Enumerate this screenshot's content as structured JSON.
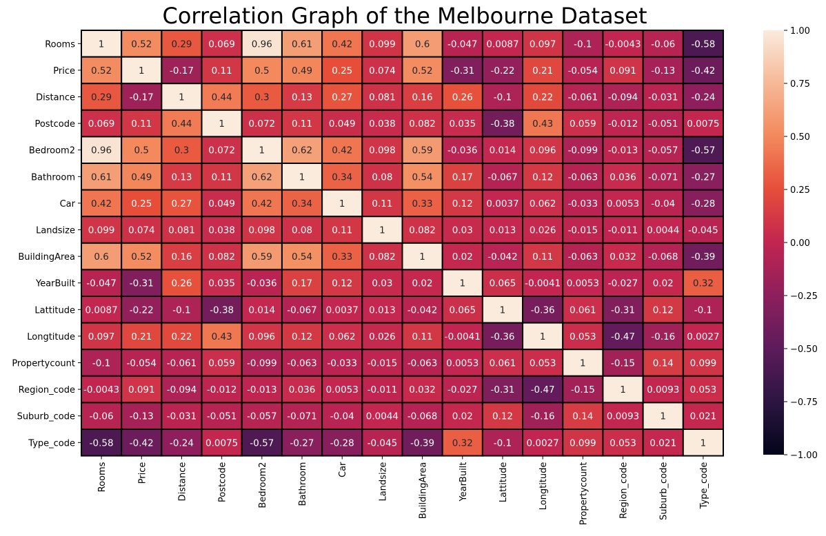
{
  "chart_data": {
    "type": "heatmap",
    "title": "Correlation Graph of the Melbourne Dataset",
    "labels": [
      "Rooms",
      "Price",
      "Distance",
      "Postcode",
      "Bedroom2",
      "Bathroom",
      "Car",
      "Landsize",
      "BuildingArea",
      "YearBuilt",
      "Lattitude",
      "Longtitude",
      "Propertycount",
      "Region_code",
      "Suburb_code",
      "Type_code"
    ],
    "values": [
      [
        1,
        0.52,
        0.29,
        0.069,
        0.96,
        0.61,
        0.42,
        0.099,
        0.6,
        -0.047,
        0.0087,
        0.097,
        -0.1,
        -0.0043,
        -0.06,
        -0.58
      ],
      [
        0.52,
        1,
        -0.17,
        0.11,
        0.5,
        0.49,
        0.25,
        0.074,
        0.52,
        -0.31,
        -0.22,
        0.21,
        -0.054,
        0.091,
        -0.13,
        -0.42
      ],
      [
        0.29,
        -0.17,
        1,
        0.44,
        0.3,
        0.13,
        0.27,
        0.081,
        0.16,
        0.26,
        -0.1,
        0.22,
        -0.061,
        -0.094,
        -0.031,
        -0.24
      ],
      [
        0.069,
        0.11,
        0.44,
        1,
        0.072,
        0.11,
        0.049,
        0.038,
        0.082,
        0.035,
        -0.38,
        0.43,
        0.059,
        -0.012,
        -0.051,
        0.0075
      ],
      [
        0.96,
        0.5,
        0.3,
        0.072,
        1,
        0.62,
        0.42,
        0.098,
        0.59,
        -0.036,
        0.014,
        0.096,
        -0.099,
        -0.013,
        -0.057,
        -0.57
      ],
      [
        0.61,
        0.49,
        0.13,
        0.11,
        0.62,
        1,
        0.34,
        0.08,
        0.54,
        0.17,
        -0.067,
        0.12,
        -0.063,
        0.036,
        -0.071,
        -0.27
      ],
      [
        0.42,
        0.25,
        0.27,
        0.049,
        0.42,
        0.34,
        1,
        0.11,
        0.33,
        0.12,
        0.0037,
        0.062,
        -0.033,
        0.0053,
        -0.04,
        -0.28
      ],
      [
        0.099,
        0.074,
        0.081,
        0.038,
        0.098,
        0.08,
        0.11,
        1,
        0.082,
        0.03,
        0.013,
        0.026,
        -0.015,
        -0.011,
        0.0044,
        -0.045
      ],
      [
        0.6,
        0.52,
        0.16,
        0.082,
        0.59,
        0.54,
        0.33,
        0.082,
        1,
        0.02,
        -0.042,
        0.11,
        -0.063,
        0.032,
        -0.068,
        -0.39
      ],
      [
        -0.047,
        -0.31,
        0.26,
        0.035,
        -0.036,
        0.17,
        0.12,
        0.03,
        0.02,
        1,
        0.065,
        -0.0041,
        0.0053,
        -0.027,
        0.02,
        0.32
      ],
      [
        0.0087,
        -0.22,
        -0.1,
        -0.38,
        0.014,
        -0.067,
        0.0037,
        0.013,
        -0.042,
        0.065,
        1,
        -0.36,
        0.061,
        -0.31,
        0.12,
        -0.1
      ],
      [
        0.097,
        0.21,
        0.22,
        0.43,
        0.096,
        0.12,
        0.062,
        0.026,
        0.11,
        -0.0041,
        -0.36,
        1,
        0.053,
        -0.47,
        -0.16,
        0.0027
      ],
      [
        -0.1,
        -0.054,
        -0.061,
        0.059,
        -0.099,
        -0.063,
        -0.033,
        -0.015,
        -0.063,
        0.0053,
        0.061,
        0.053,
        1,
        -0.15,
        0.14,
        0.099
      ],
      [
        -0.0043,
        0.091,
        -0.094,
        -0.012,
        -0.013,
        0.036,
        0.0053,
        -0.011,
        0.032,
        -0.027,
        -0.31,
        -0.47,
        -0.15,
        1,
        0.0093,
        0.053
      ],
      [
        -0.06,
        -0.13,
        -0.031,
        -0.051,
        -0.057,
        -0.071,
        -0.04,
        0.0044,
        -0.068,
        0.02,
        0.12,
        -0.16,
        0.14,
        0.0093,
        1,
        0.021
      ],
      [
        -0.58,
        -0.42,
        -0.24,
        0.0075,
        -0.57,
        -0.27,
        -0.28,
        -0.045,
        -0.39,
        0.32,
        -0.1,
        0.0027,
        0.099,
        0.053,
        0.021,
        1
      ]
    ],
    "vmin": -1,
    "vmax": 1,
    "colorbar_ticks": [
      "1.00",
      "0.75",
      "0.50",
      "0.25",
      "0.00",
      "−0.25",
      "−0.50",
      "−0.75",
      "−1.00"
    ],
    "colorbar_tick_values": [
      1,
      0.75,
      0.5,
      0.25,
      0,
      -0.25,
      -0.5,
      -0.75,
      -1
    ],
    "colormap": "rocket",
    "colormap_stops": [
      "#03051a",
      "#2c1541",
      "#5d1b5b",
      "#8d1f5c",
      "#c22550",
      "#e64e3a",
      "#f3895c",
      "#f6b897",
      "#faebdd"
    ],
    "annotations": true,
    "cell_border_color": "#000000"
  }
}
